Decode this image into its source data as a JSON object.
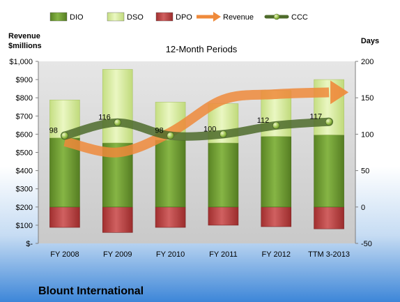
{
  "company": "Blount International",
  "colors": {
    "dio": "#6f9a2e",
    "dso": "#d7ec9d",
    "dpo": "#b83b3b",
    "revenue": "#ef8a3b",
    "ccc": "#4e6b2b",
    "bg_top": "#ffffff",
    "bg_bottom": "#3d86d8",
    "plot_bg": "#d9d9d9"
  },
  "chart_data": {
    "type": "bar",
    "title": "12-Month Periods",
    "categories": [
      "FY 2008",
      "FY 2009",
      "FY 2010",
      "FY 2011",
      "FY 2012",
      "TTM 3-2013"
    ],
    "left_axis": {
      "label_line1": "Revenue",
      "label_line2": "$millions",
      "ylim": [
        0,
        1000
      ],
      "ticks": [
        "$-",
        "$100",
        "$200",
        "$300",
        "$400",
        "$500",
        "$600",
        "$700",
        "$800",
        "$900",
        "$1,000"
      ]
    },
    "right_axis": {
      "label": "Days",
      "ylim": [
        -50,
        200
      ],
      "ticks": [
        "-50",
        "0",
        "50",
        "100",
        "150",
        "200"
      ]
    },
    "legend": {
      "position": "top",
      "items": [
        {
          "key": "dio",
          "label": "DIO",
          "kind": "bar"
        },
        {
          "key": "dso",
          "label": "DSO",
          "kind": "bar"
        },
        {
          "key": "dpo",
          "label": "DPO",
          "kind": "bar"
        },
        {
          "key": "revenue",
          "label": "Revenue",
          "kind": "arrow"
        },
        {
          "key": "ccc",
          "label": "CCC",
          "kind": "line"
        }
      ]
    },
    "series": [
      {
        "name": "DIO",
        "axis": "right",
        "values": [
          95,
          88,
          92,
          88,
          97,
          99
        ]
      },
      {
        "name": "DSO",
        "axis": "right",
        "values": [
          52,
          101,
          52,
          54,
          63,
          76
        ]
      },
      {
        "name": "DPO",
        "axis": "right",
        "values": [
          -28,
          -35,
          -28,
          -25,
          -27,
          -30
        ]
      },
      {
        "name": "CCC",
        "axis": "right",
        "values": [
          98,
          116,
          98,
          100,
          112,
          117
        ],
        "labels": [
          "98",
          "116",
          "98",
          "100",
          "112",
          "117"
        ]
      },
      {
        "name": "Revenue",
        "axis": "left",
        "values": [
          560,
          500,
          610,
          790,
          820,
          830
        ]
      }
    ],
    "grid": false
  }
}
